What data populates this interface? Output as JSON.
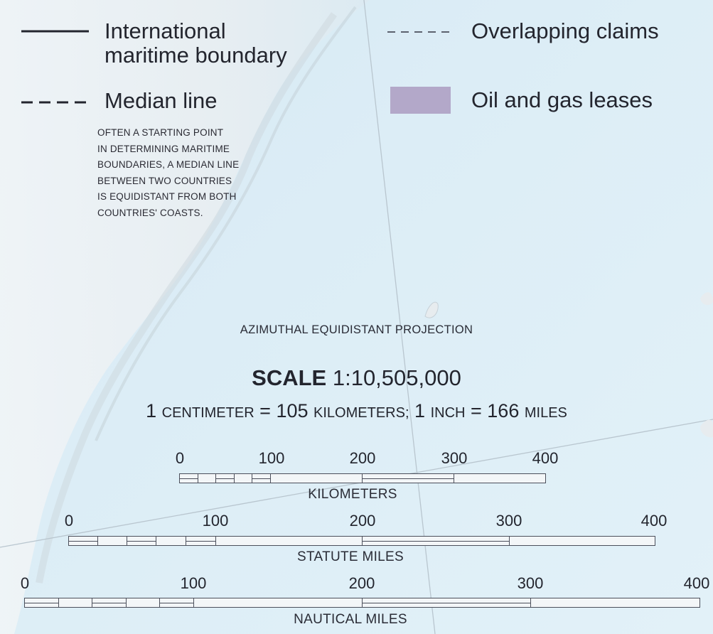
{
  "legend": {
    "international_boundary": "International\nmaritime boundary",
    "overlapping_claims": "Overlapping claims",
    "median_line": "Median line",
    "oil_gas_leases": "Oil and gas leases",
    "median_note": "OFTEN A STARTING POINT\nIN DETERMINING MARITIME\nBOUNDARIES, A MEDIAN LINE\nBETWEEN TWO COUNTRIES\nIS EQUIDISTANT FROM BOTH\nCOUNTRIES' COASTS.",
    "lease_color": "#b3a8c9"
  },
  "projection": "AZIMUTHAL EQUIDISTANT PROJECTION",
  "scale": {
    "label": "SCALE",
    "ratio": "1:10,505,000",
    "cm_value": "1",
    "cm_unit": "CENTIMETER",
    "eq1": "=",
    "km_value": "105",
    "km_unit": "KILOMETERS;",
    "inch_value": "1",
    "inch_unit": "INCH",
    "eq2": "=",
    "mi_value": "166",
    "mi_unit": "MILES"
  },
  "bars": {
    "kilometers": {
      "label": "KILOMETERS",
      "ticks": [
        "0",
        "100",
        "200",
        "300",
        "400"
      ]
    },
    "statute": {
      "label": "STATUTE MILES",
      "ticks": [
        "0",
        "100",
        "200",
        "300",
        "400"
      ]
    },
    "nautical": {
      "label": "NAUTICAL MILES",
      "ticks": [
        "0",
        "100",
        "200",
        "300",
        "400"
      ]
    }
  },
  "colors": {
    "sea": "#dcedf6",
    "land": "#e8ecef",
    "line": "#23252e"
  }
}
